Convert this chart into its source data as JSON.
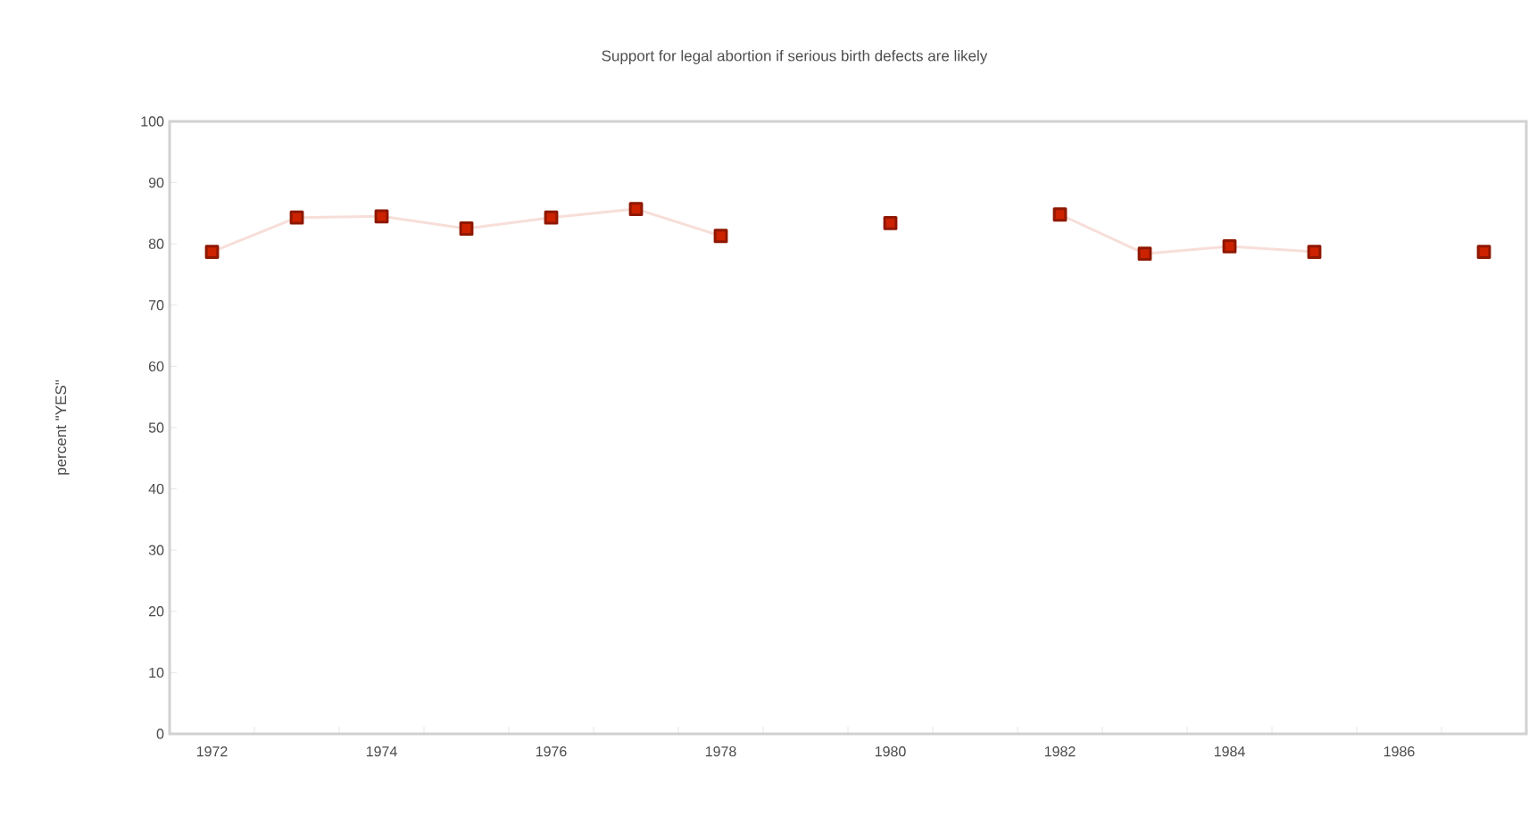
{
  "chart_data": {
    "type": "line",
    "title": "Support for legal abortion if serious birth defects are likely",
    "ylabel": "percent \"YES\"",
    "categories": [
      "1972",
      null,
      "1974",
      null,
      "1976",
      null,
      "1978",
      null,
      "1980",
      null,
      "1982",
      null,
      "1984",
      null,
      "1986",
      null
    ],
    "series": [
      {
        "color": "#cc2200",
        "values": [
          78.7,
          84.3,
          84.5,
          82.5,
          84.3,
          85.7,
          81.3,
          null,
          83.4,
          null,
          84.8,
          78.4,
          79.6,
          78.7,
          null,
          78.7
        ]
      }
    ],
    "ylim": [
      0,
      100
    ],
    "yticks": [
      0,
      10,
      20,
      30,
      40,
      50,
      60,
      70,
      80,
      90,
      100
    ],
    "grid": false,
    "marker": "square",
    "line_style": "solid"
  }
}
